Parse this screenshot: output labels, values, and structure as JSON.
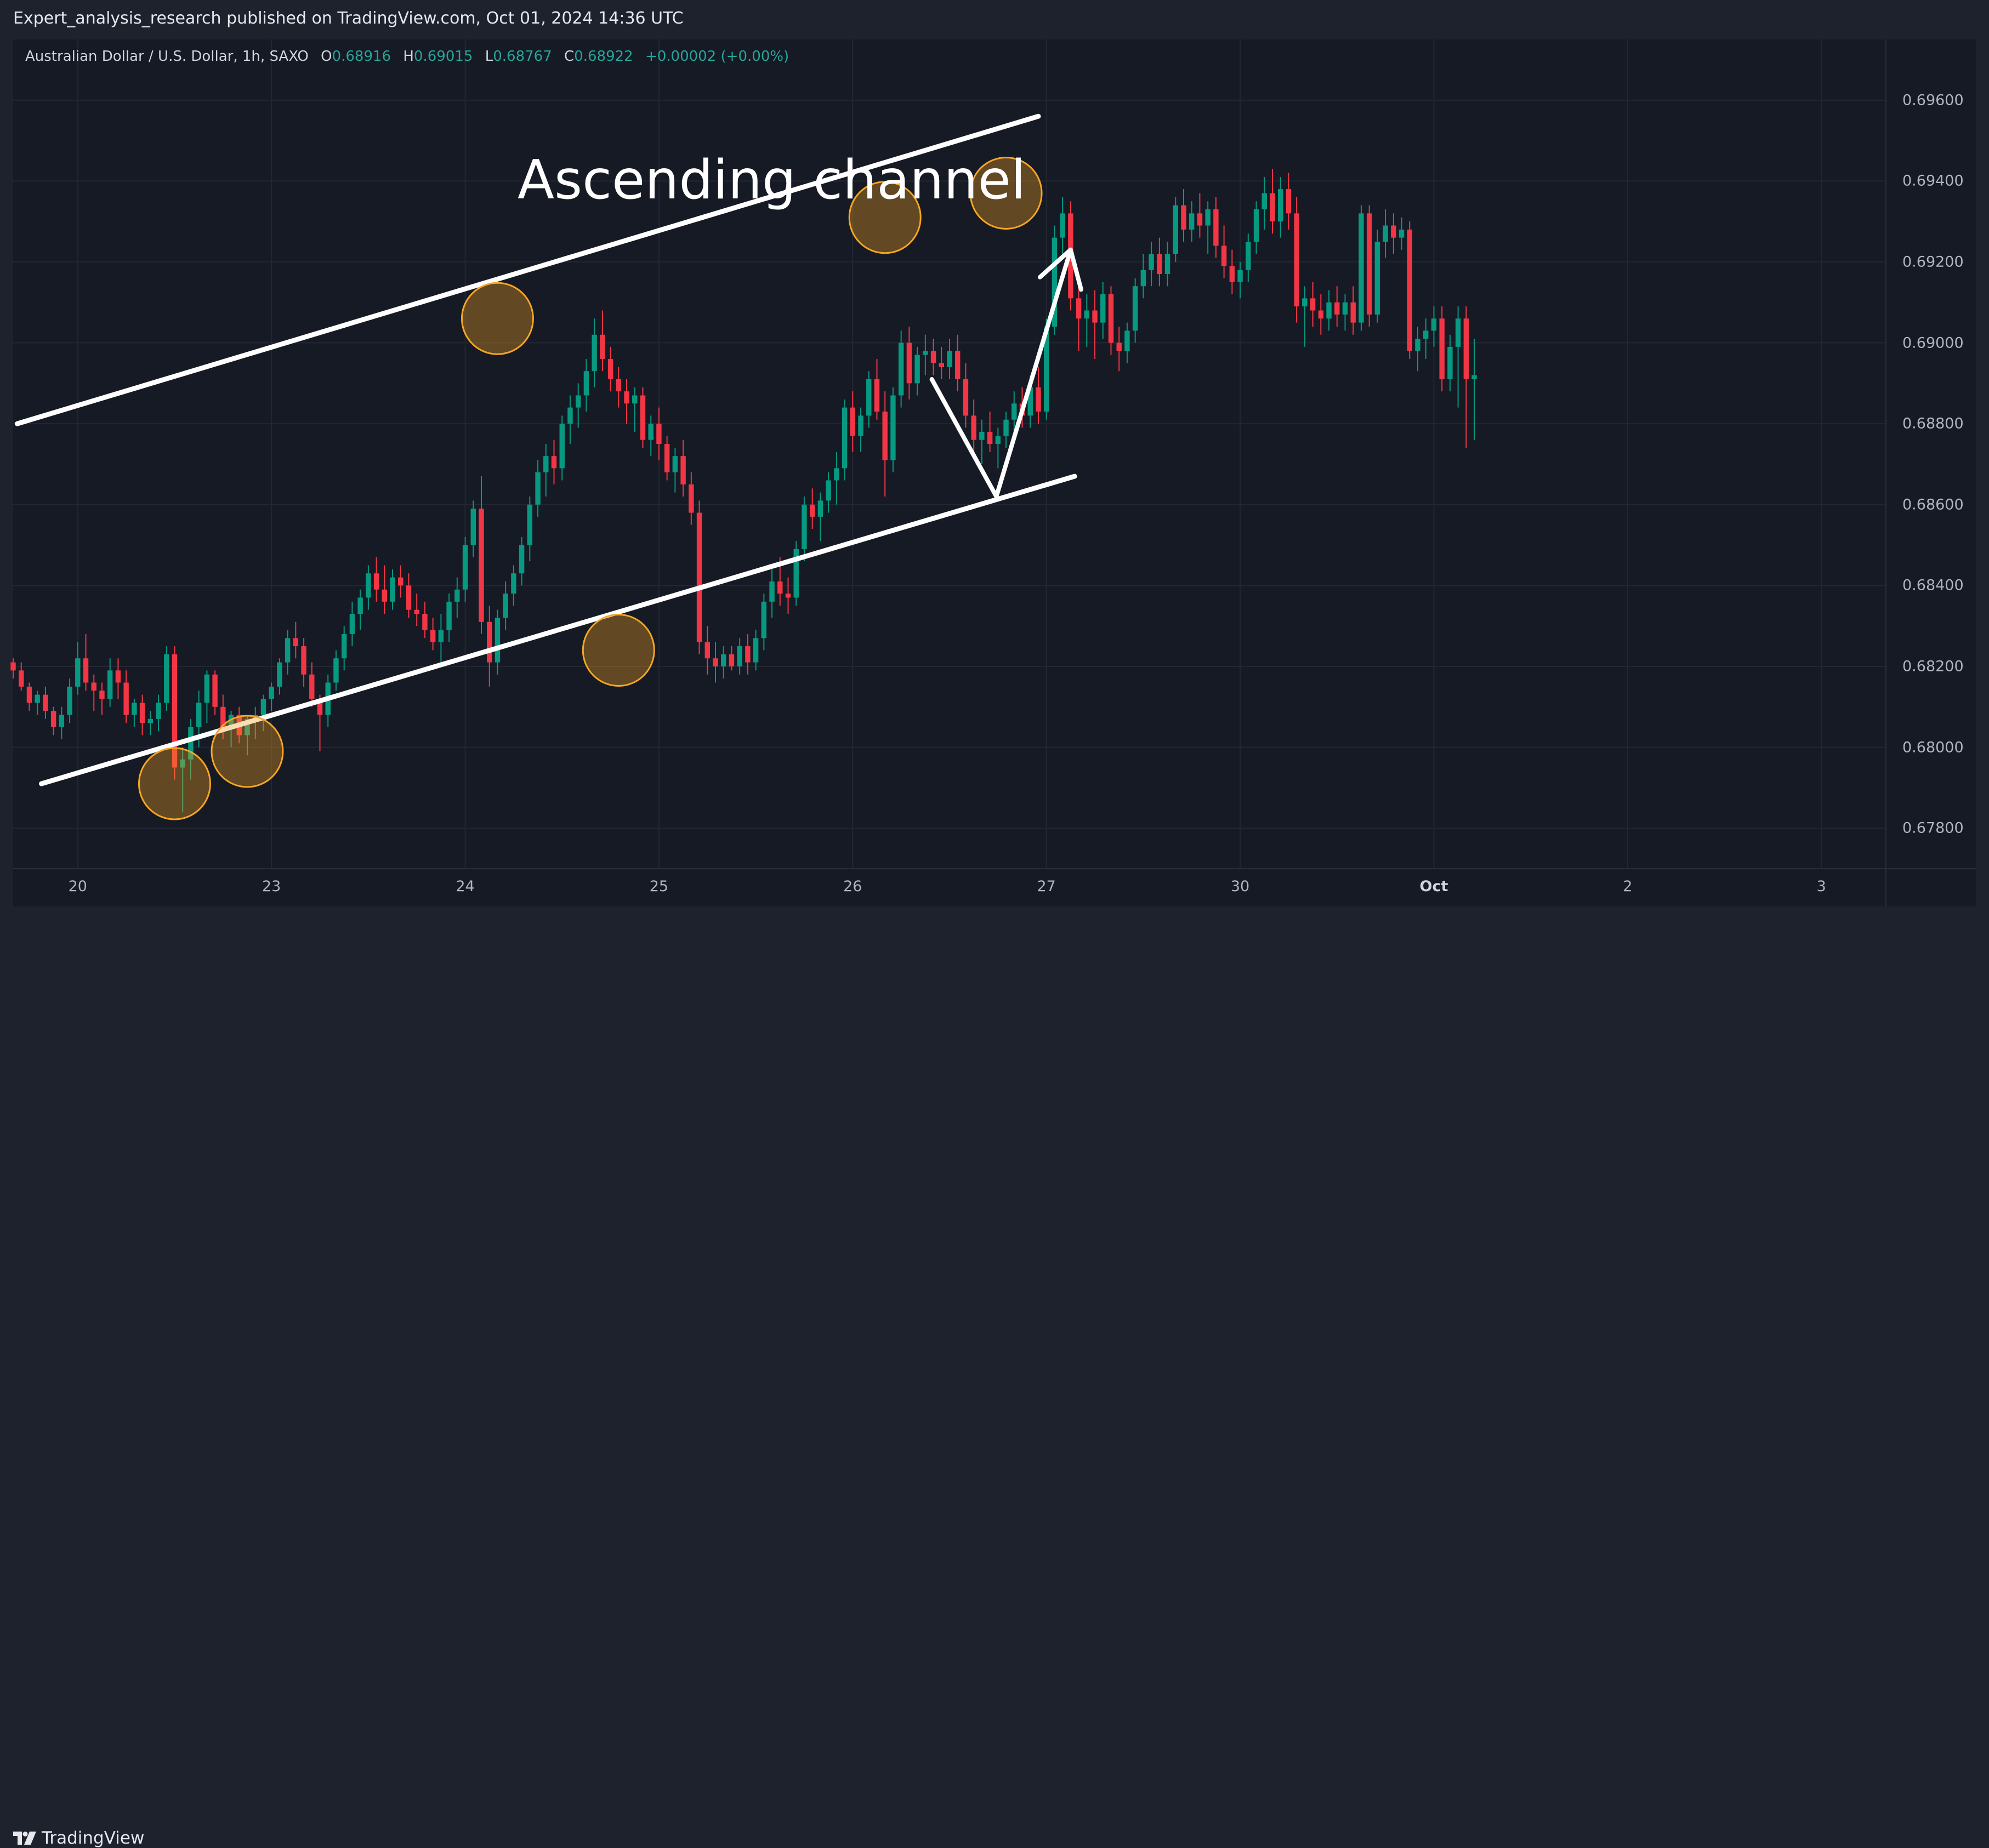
{
  "header": {
    "publish_line": "Expert_analysis_research published on TradingView.com, Oct 01, 2024 14:36 UTC"
  },
  "footer": {
    "brand": "TradingView"
  },
  "legend": {
    "symbol": "Australian Dollar / U.S. Dollar, 1h, SAXO",
    "open_key": "O",
    "open": "0.68916",
    "high_key": "H",
    "high": "0.69015",
    "low_key": "L",
    "low": "0.68767",
    "close_key": "C",
    "close": "0.68922",
    "change": "+0.00002 (+0.00%)"
  },
  "colors": {
    "up": "#089981",
    "down": "#f23645",
    "background": "#161a25",
    "grid": "#232733",
    "channel_line": "#ffffff",
    "highlight_fill": "#f0a020",
    "highlight_stroke": "#f5a623"
  },
  "chart_data": {
    "type": "candlestick",
    "symbol": "AUDUSD",
    "interval": "1h",
    "annotation": "Ascending channel",
    "y_axis": {
      "range": [
        0.677,
        0.6975
      ],
      "ticks": [
        "0.69600",
        "0.69400",
        "0.69200",
        "0.69000",
        "0.68800",
        "0.68600",
        "0.68400",
        "0.68200",
        "0.68000",
        "0.67800"
      ],
      "tick_values": [
        0.696,
        0.694,
        0.692,
        0.69,
        0.688,
        0.686,
        0.684,
        0.682,
        0.68,
        0.678
      ]
    },
    "x_axis": {
      "labels": [
        "20",
        "23",
        "24",
        "25",
        "26",
        "27",
        "30",
        "Oct",
        "2",
        "3"
      ],
      "label_index": [
        8,
        32,
        56,
        80,
        104,
        128,
        152,
        176,
        200,
        224
      ],
      "bold_labels": [
        "Oct"
      ],
      "range_index": [
        0,
        232
      ]
    },
    "candles_ohlc": [
      [
        0.6821,
        0.6822,
        0.6817,
        0.6819
      ],
      [
        0.6819,
        0.6821,
        0.6814,
        0.6815
      ],
      [
        0.6815,
        0.6816,
        0.6809,
        0.6811
      ],
      [
        0.6811,
        0.6814,
        0.6808,
        0.6813
      ],
      [
        0.6813,
        0.6815,
        0.6807,
        0.6809
      ],
      [
        0.6809,
        0.681,
        0.6803,
        0.6805
      ],
      [
        0.6805,
        0.681,
        0.6802,
        0.6808
      ],
      [
        0.6808,
        0.6817,
        0.6806,
        0.6815
      ],
      [
        0.6815,
        0.6826,
        0.6813,
        0.6822
      ],
      [
        0.6822,
        0.6828,
        0.6814,
        0.6816
      ],
      [
        0.6816,
        0.6818,
        0.6809,
        0.6814
      ],
      [
        0.6814,
        0.6816,
        0.6808,
        0.6812
      ],
      [
        0.6812,
        0.6822,
        0.681,
        0.6819
      ],
      [
        0.6819,
        0.6822,
        0.6812,
        0.6816
      ],
      [
        0.6816,
        0.6819,
        0.6806,
        0.6808
      ],
      [
        0.6808,
        0.6812,
        0.6805,
        0.6811
      ],
      [
        0.6811,
        0.6813,
        0.6803,
        0.6806
      ],
      [
        0.6806,
        0.6809,
        0.6803,
        0.6807
      ],
      [
        0.6807,
        0.6813,
        0.6804,
        0.6811
      ],
      [
        0.6811,
        0.6825,
        0.6809,
        0.6823
      ],
      [
        0.6823,
        0.6825,
        0.6792,
        0.6795
      ],
      [
        0.6795,
        0.68,
        0.6784,
        0.6797
      ],
      [
        0.6797,
        0.6807,
        0.6792,
        0.6805
      ],
      [
        0.6805,
        0.6814,
        0.68,
        0.6811
      ],
      [
        0.6811,
        0.6819,
        0.6806,
        0.6818
      ],
      [
        0.6818,
        0.6819,
        0.6808,
        0.681
      ],
      [
        0.681,
        0.6813,
        0.6802,
        0.6805
      ],
      [
        0.6805,
        0.6809,
        0.68,
        0.6808
      ],
      [
        0.6808,
        0.681,
        0.6801,
        0.6803
      ],
      [
        0.6803,
        0.6808,
        0.6798,
        0.6807
      ],
      [
        0.6807,
        0.681,
        0.6802,
        0.6808
      ],
      [
        0.6808,
        0.6813,
        0.6804,
        0.6812
      ],
      [
        0.6812,
        0.6816,
        0.6809,
        0.6815
      ],
      [
        0.6815,
        0.6822,
        0.6813,
        0.6821
      ],
      [
        0.6821,
        0.6829,
        0.6818,
        0.6827
      ],
      [
        0.6827,
        0.6831,
        0.6822,
        0.6825
      ],
      [
        0.6825,
        0.6827,
        0.6815,
        0.6818
      ],
      [
        0.6818,
        0.6821,
        0.681,
        0.6812
      ],
      [
        0.6812,
        0.6813,
        0.6799,
        0.6808
      ],
      [
        0.6808,
        0.6818,
        0.6805,
        0.6816
      ],
      [
        0.6816,
        0.6824,
        0.6814,
        0.6822
      ],
      [
        0.6822,
        0.683,
        0.6819,
        0.6828
      ],
      [
        0.6828,
        0.6836,
        0.6825,
        0.6833
      ],
      [
        0.6833,
        0.6839,
        0.6829,
        0.6837
      ],
      [
        0.6837,
        0.6845,
        0.6834,
        0.6843
      ],
      [
        0.6843,
        0.6847,
        0.6836,
        0.6839
      ],
      [
        0.6839,
        0.6845,
        0.6833,
        0.6836
      ],
      [
        0.6836,
        0.6844,
        0.6834,
        0.6842
      ],
      [
        0.6842,
        0.6845,
        0.6837,
        0.684
      ],
      [
        0.684,
        0.6843,
        0.6832,
        0.6834
      ],
      [
        0.6834,
        0.6838,
        0.683,
        0.6833
      ],
      [
        0.6833,
        0.6836,
        0.6827,
        0.6829
      ],
      [
        0.6829,
        0.6832,
        0.6824,
        0.6826
      ],
      [
        0.6826,
        0.6833,
        0.6821,
        0.6829
      ],
      [
        0.6829,
        0.6838,
        0.6826,
        0.6836
      ],
      [
        0.6836,
        0.6842,
        0.6832,
        0.6839
      ],
      [
        0.6839,
        0.6852,
        0.6836,
        0.685
      ],
      [
        0.685,
        0.6861,
        0.6847,
        0.6859
      ],
      [
        0.6859,
        0.6867,
        0.6828,
        0.6831
      ],
      [
        0.6831,
        0.6835,
        0.6815,
        0.6821
      ],
      [
        0.6821,
        0.6834,
        0.6818,
        0.6832
      ],
      [
        0.6832,
        0.6841,
        0.6829,
        0.6838
      ],
      [
        0.6838,
        0.6845,
        0.6835,
        0.6843
      ],
      [
        0.6843,
        0.6852,
        0.684,
        0.685
      ],
      [
        0.685,
        0.6862,
        0.6846,
        0.686
      ],
      [
        0.686,
        0.6871,
        0.6857,
        0.6868
      ],
      [
        0.6868,
        0.6875,
        0.6862,
        0.6872
      ],
      [
        0.6872,
        0.6876,
        0.6865,
        0.6869
      ],
      [
        0.6869,
        0.6882,
        0.6866,
        0.688
      ],
      [
        0.688,
        0.6887,
        0.6875,
        0.6884
      ],
      [
        0.6884,
        0.689,
        0.6879,
        0.6887
      ],
      [
        0.6887,
        0.6896,
        0.6883,
        0.6893
      ],
      [
        0.6893,
        0.6906,
        0.6889,
        0.6902
      ],
      [
        0.6902,
        0.6908,
        0.6893,
        0.6896
      ],
      [
        0.6896,
        0.6899,
        0.6888,
        0.6891
      ],
      [
        0.6891,
        0.6894,
        0.6884,
        0.6888
      ],
      [
        0.6888,
        0.6891,
        0.688,
        0.6885
      ],
      [
        0.6885,
        0.6889,
        0.6878,
        0.6887
      ],
      [
        0.6887,
        0.6889,
        0.6874,
        0.6876
      ],
      [
        0.6876,
        0.6882,
        0.6872,
        0.688
      ],
      [
        0.688,
        0.6884,
        0.6871,
        0.6875
      ],
      [
        0.6875,
        0.6877,
        0.6866,
        0.6868
      ],
      [
        0.6868,
        0.6874,
        0.6863,
        0.6872
      ],
      [
        0.6872,
        0.6876,
        0.6862,
        0.6865
      ],
      [
        0.6865,
        0.6868,
        0.6855,
        0.6858
      ],
      [
        0.6858,
        0.6861,
        0.6823,
        0.6826
      ],
      [
        0.6826,
        0.683,
        0.6818,
        0.6822
      ],
      [
        0.6822,
        0.6826,
        0.6816,
        0.682
      ],
      [
        0.682,
        0.6825,
        0.6817,
        0.6823
      ],
      [
        0.6823,
        0.6825,
        0.6819,
        0.682
      ],
      [
        0.682,
        0.6827,
        0.6818,
        0.6825
      ],
      [
        0.6825,
        0.6828,
        0.6818,
        0.6821
      ],
      [
        0.6821,
        0.6829,
        0.6819,
        0.6827
      ],
      [
        0.6827,
        0.6838,
        0.6824,
        0.6836
      ],
      [
        0.6836,
        0.6844,
        0.6832,
        0.6841
      ],
      [
        0.6841,
        0.6847,
        0.6835,
        0.6838
      ],
      [
        0.6838,
        0.6842,
        0.6833,
        0.6837
      ],
      [
        0.6837,
        0.6851,
        0.6835,
        0.6849
      ],
      [
        0.6849,
        0.6862,
        0.6846,
        0.686
      ],
      [
        0.686,
        0.6864,
        0.6854,
        0.6857
      ],
      [
        0.6857,
        0.6863,
        0.6851,
        0.6861
      ],
      [
        0.6861,
        0.6868,
        0.6858,
        0.6866
      ],
      [
        0.6866,
        0.6873,
        0.686,
        0.6869
      ],
      [
        0.6869,
        0.6886,
        0.6866,
        0.6884
      ],
      [
        0.6884,
        0.6888,
        0.6873,
        0.6877
      ],
      [
        0.6877,
        0.6884,
        0.6873,
        0.6882
      ],
      [
        0.6882,
        0.6893,
        0.6879,
        0.6891
      ],
      [
        0.6891,
        0.6896,
        0.6881,
        0.6883
      ],
      [
        0.6883,
        0.6888,
        0.6862,
        0.6871
      ],
      [
        0.6871,
        0.6889,
        0.6868,
        0.6887
      ],
      [
        0.6887,
        0.6903,
        0.6884,
        0.69
      ],
      [
        0.69,
        0.6904,
        0.6886,
        0.689
      ],
      [
        0.689,
        0.6899,
        0.6887,
        0.6897
      ],
      [
        0.6897,
        0.6902,
        0.6892,
        0.6898
      ],
      [
        0.6898,
        0.6901,
        0.6892,
        0.6895
      ],
      [
        0.6895,
        0.6899,
        0.6891,
        0.6894
      ],
      [
        0.6894,
        0.6901,
        0.6891,
        0.6898
      ],
      [
        0.6898,
        0.6902,
        0.6888,
        0.6891
      ],
      [
        0.6891,
        0.6895,
        0.6879,
        0.6882
      ],
      [
        0.6882,
        0.6886,
        0.6872,
        0.6876
      ],
      [
        0.6876,
        0.6881,
        0.687,
        0.6878
      ],
      [
        0.6878,
        0.6883,
        0.6873,
        0.6875
      ],
      [
        0.6875,
        0.6879,
        0.6869,
        0.6877
      ],
      [
        0.6877,
        0.6883,
        0.6874,
        0.6881
      ],
      [
        0.6881,
        0.6888,
        0.6878,
        0.6885
      ],
      [
        0.6885,
        0.6889,
        0.6879,
        0.6882
      ],
      [
        0.6882,
        0.6892,
        0.6879,
        0.6889
      ],
      [
        0.6889,
        0.6894,
        0.688,
        0.6883
      ],
      [
        0.6883,
        0.6906,
        0.6881,
        0.6904
      ],
      [
        0.6904,
        0.6929,
        0.6902,
        0.6926
      ],
      [
        0.6926,
        0.6936,
        0.6922,
        0.6932
      ],
      [
        0.6932,
        0.6935,
        0.6908,
        0.6911
      ],
      [
        0.6911,
        0.6914,
        0.6898,
        0.6906
      ],
      [
        0.6906,
        0.6912,
        0.6899,
        0.6908
      ],
      [
        0.6908,
        0.6913,
        0.6896,
        0.6905
      ],
      [
        0.6905,
        0.6915,
        0.6901,
        0.6912
      ],
      [
        0.6912,
        0.6914,
        0.6897,
        0.69
      ],
      [
        0.69,
        0.6904,
        0.6893,
        0.6898
      ],
      [
        0.6898,
        0.6905,
        0.6895,
        0.6903
      ],
      [
        0.6903,
        0.6916,
        0.69,
        0.6914
      ],
      [
        0.6914,
        0.6922,
        0.6911,
        0.6918
      ],
      [
        0.6918,
        0.6925,
        0.6914,
        0.6922
      ],
      [
        0.6922,
        0.6926,
        0.6914,
        0.6917
      ],
      [
        0.6917,
        0.6925,
        0.6914,
        0.6922
      ],
      [
        0.6922,
        0.6936,
        0.692,
        0.6934
      ],
      [
        0.6934,
        0.6938,
        0.6925,
        0.6928
      ],
      [
        0.6928,
        0.6935,
        0.6925,
        0.6932
      ],
      [
        0.6932,
        0.6937,
        0.6926,
        0.6929
      ],
      [
        0.6929,
        0.6935,
        0.6922,
        0.6933
      ],
      [
        0.6933,
        0.6936,
        0.6921,
        0.6924
      ],
      [
        0.6924,
        0.6929,
        0.6916,
        0.6919
      ],
      [
        0.6919,
        0.6923,
        0.6912,
        0.6915
      ],
      [
        0.6915,
        0.692,
        0.6911,
        0.6918
      ],
      [
        0.6918,
        0.6927,
        0.6915,
        0.6925
      ],
      [
        0.6925,
        0.6935,
        0.6922,
        0.6933
      ],
      [
        0.6933,
        0.6941,
        0.6928,
        0.6937
      ],
      [
        0.6937,
        0.6943,
        0.6927,
        0.693
      ],
      [
        0.693,
        0.6941,
        0.6926,
        0.6938
      ],
      [
        0.6938,
        0.6942,
        0.6928,
        0.6932
      ],
      [
        0.6932,
        0.6936,
        0.6905,
        0.6909
      ],
      [
        0.6909,
        0.6914,
        0.6899,
        0.6911
      ],
      [
        0.6911,
        0.6915,
        0.6904,
        0.6908
      ],
      [
        0.6908,
        0.6912,
        0.6902,
        0.6906
      ],
      [
        0.6906,
        0.6913,
        0.6903,
        0.691
      ],
      [
        0.691,
        0.6914,
        0.6904,
        0.6907
      ],
      [
        0.6907,
        0.6912,
        0.6903,
        0.691
      ],
      [
        0.691,
        0.6914,
        0.6902,
        0.6905
      ],
      [
        0.6905,
        0.6934,
        0.6903,
        0.6932
      ],
      [
        0.6932,
        0.6934,
        0.6904,
        0.6907
      ],
      [
        0.6907,
        0.6928,
        0.6905,
        0.6925
      ],
      [
        0.6925,
        0.6933,
        0.6921,
        0.6929
      ],
      [
        0.6929,
        0.6932,
        0.6922,
        0.6926
      ],
      [
        0.6926,
        0.6931,
        0.6923,
        0.6928
      ],
      [
        0.6928,
        0.693,
        0.6896,
        0.6898
      ],
      [
        0.6898,
        0.6904,
        0.6893,
        0.6901
      ],
      [
        0.6901,
        0.6906,
        0.6896,
        0.6903
      ],
      [
        0.6903,
        0.6909,
        0.6899,
        0.6906
      ],
      [
        0.6906,
        0.6909,
        0.6888,
        0.6891
      ],
      [
        0.6891,
        0.6902,
        0.6888,
        0.6899
      ],
      [
        0.6899,
        0.6909,
        0.6884,
        0.6906
      ],
      [
        0.6906,
        0.6909,
        0.6874,
        0.6891
      ],
      [
        0.6891,
        0.6901,
        0.6876,
        0.6892
      ]
    ],
    "channel_lines": [
      {
        "name": "resistance",
        "from": [
          0.5,
          0.688
        ],
        "to": [
          127,
          0.6956
        ]
      },
      {
        "name": "support",
        "from": [
          3.5,
          0.6791
        ],
        "to": [
          131.5,
          0.6867
        ]
      }
    ],
    "highlighted_touches": [
      {
        "index": 20,
        "price": 0.6791
      },
      {
        "index": 29,
        "price": 0.6799
      },
      {
        "index": 60,
        "price": 0.6906
      },
      {
        "index": 75,
        "price": 0.6824
      },
      {
        "index": 108,
        "price": 0.6931
      },
      {
        "index": 123,
        "price": 0.6937
      }
    ],
    "projection_path": [
      [
        113.8,
        0.6891
      ],
      [
        121.8,
        0.6862
      ],
      [
        131,
        0.6923
      ]
    ]
  }
}
